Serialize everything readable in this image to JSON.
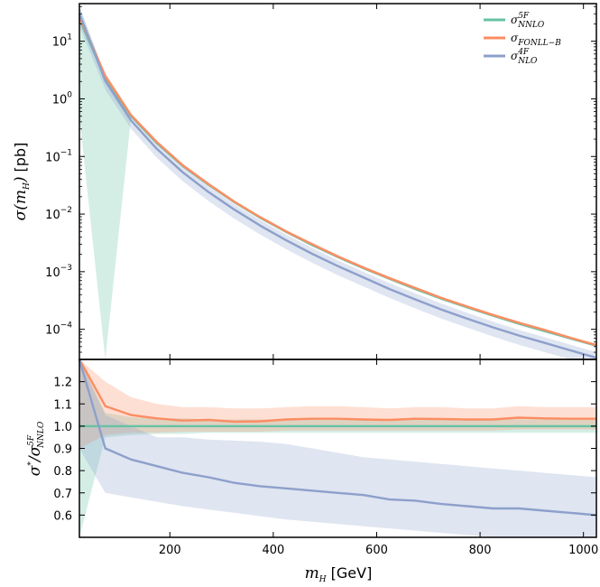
{
  "chart_data": [
    {
      "type": "line",
      "panel": "top",
      "yscale": "log",
      "xlim": [
        25,
        1025
      ],
      "ylim": [
        3e-05,
        45
      ],
      "ylabel": {
        "main": "σ(m",
        "sub": "H",
        "close": ")",
        "unit": "[pb]"
      },
      "yticks": [
        0.0001,
        0.001,
        0.01,
        0.1,
        1,
        10
      ],
      "ytick_labels": [
        {
          "base": "10",
          "exp": "−4"
        },
        {
          "base": "10",
          "exp": "−3"
        },
        {
          "base": "10",
          "exp": "−2"
        },
        {
          "base": "10",
          "exp": "−1"
        },
        {
          "base": "10",
          "exp": "0"
        },
        {
          "base": "10",
          "exp": "1"
        }
      ],
      "legend_position": "top-right",
      "x": [
        25,
        75,
        125,
        175,
        225,
        275,
        325,
        375,
        425,
        475,
        525,
        575,
        625,
        675,
        725,
        775,
        825,
        875,
        925,
        975,
        1025
      ],
      "series": [
        {
          "name": "5F NNLO",
          "legend": {
            "base": "σ",
            "sup": "5F",
            "sub": "NNLO"
          },
          "color": "#66c2a5",
          "values": [
            24,
            2.3,
            0.5,
            0.17,
            0.068,
            0.032,
            0.016,
            0.0086,
            0.0049,
            0.0029,
            0.00179,
            0.00114,
            0.00075,
            0.0005,
            0.00034,
            0.00024,
            0.000172,
            0.000125,
            9.3e-05,
            6.9e-05,
            5.2e-05
          ],
          "band_low": [
            0.5,
            1e-06,
            0.48,
            0.164,
            0.066,
            0.031,
            0.0155,
            0.0083,
            0.00475,
            0.0028,
            0.00174,
            0.0011,
            0.00073,
            0.00049,
            0.00033,
            0.000233,
            0.000167,
            0.000121,
            9e-05,
            6.7e-05,
            5e-05
          ],
          "band_high": [
            40,
            2.5,
            0.52,
            0.176,
            0.07,
            0.033,
            0.0165,
            0.0089,
            0.005,
            0.003,
            0.00184,
            0.00117,
            0.00077,
            0.00052,
            0.00035,
            0.000247,
            0.000177,
            0.000129,
            9.6e-05,
            7.1e-05,
            5.4e-05
          ]
        },
        {
          "name": "FONLL-B",
          "legend": {
            "base": "σ",
            "sub": "FONLL−B"
          },
          "color": "#fc8d62",
          "values": [
            26,
            2.5,
            0.52,
            0.177,
            0.07,
            0.033,
            0.0163,
            0.0088,
            0.005,
            0.003,
            0.00184,
            0.00117,
            0.00077,
            0.00052,
            0.00035,
            0.000248,
            0.000177,
            0.00013,
            9.7e-05,
            7.1e-05,
            5.3e-05
          ],
          "band_low": [
            22,
            2.2,
            0.48,
            0.165,
            0.066,
            0.031,
            0.0154,
            0.0083,
            0.0047,
            0.0028,
            0.00173,
            0.0011,
            0.00072,
            0.00049,
            0.00033,
            0.000233,
            0.000166,
            0.000122,
            9.1e-05,
            6.7e-05,
            5e-05
          ],
          "band_high": [
            32,
            2.8,
            0.56,
            0.19,
            0.075,
            0.035,
            0.0173,
            0.0093,
            0.0053,
            0.0032,
            0.00195,
            0.00124,
            0.00082,
            0.00055,
            0.00037,
            0.000263,
            0.000188,
            0.000138,
            0.000103,
            7.5e-05,
            5.6e-05
          ]
        },
        {
          "name": "4F NLO",
          "legend": {
            "base": "σ",
            "sup": "4F",
            "sub": "NLO"
          },
          "color": "#8da0cb",
          "values": [
            30,
            2.05,
            0.42,
            0.135,
            0.053,
            0.024,
            0.0119,
            0.0063,
            0.0035,
            0.00205,
            0.00125,
            0.00079,
            0.0005,
            0.00033,
            0.00022,
            0.000153,
            0.000108,
            7.8e-05,
            5.8e-05,
            4.3e-05,
            3.2e-05
          ],
          "band_low": [
            18,
            1.45,
            0.3,
            0.095,
            0.037,
            0.0168,
            0.0083,
            0.0044,
            0.00245,
            0.00143,
            0.00087,
            0.00055,
            0.00035,
            0.00023,
            0.000154,
            0.000107,
            7.5e-05,
            5.4e-05,
            4e-05,
            3e-05,
            2.2e-05
          ],
          "band_high": [
            40,
            2.6,
            0.53,
            0.17,
            0.066,
            0.03,
            0.0148,
            0.0079,
            0.0044,
            0.0026,
            0.00157,
            0.00099,
            0.00063,
            0.00042,
            0.00028,
            0.000193,
            0.000136,
            9.8e-05,
            7.3e-05,
            5.4e-05,
            4e-05
          ]
        }
      ]
    },
    {
      "type": "line",
      "panel": "bottom",
      "xlim": [
        25,
        1025
      ],
      "ylim": [
        0.5,
        1.3
      ],
      "xlabel": {
        "main": "m",
        "sub": "H",
        "unit": "[GeV]"
      },
      "ylabel": {
        "base": "σ",
        "sup1": "*",
        "slash": "/σ",
        "sup2": "5F",
        "sub2": "NNLO"
      },
      "xticks": [
        200,
        400,
        600,
        800,
        1000
      ],
      "xtick_labels": [
        "200",
        "400",
        "600",
        "800",
        "1000"
      ],
      "yticks": [
        0.6,
        0.7,
        0.8,
        0.9,
        1.0,
        1.1,
        1.2
      ],
      "ytick_labels": [
        "0.6",
        "0.7",
        "0.8",
        "0.9",
        "1.0",
        "1.1",
        "1.2"
      ],
      "x": [
        25,
        75,
        125,
        175,
        225,
        275,
        325,
        375,
        425,
        475,
        525,
        575,
        625,
        675,
        725,
        775,
        825,
        875,
        925,
        975,
        1025
      ],
      "series": [
        {
          "name": "5F NNLO",
          "color": "#66c2a5",
          "values": [
            1.0,
            1.0,
            1.0,
            1.0,
            1.0,
            1.0,
            1.0,
            1.0,
            1.0,
            1.0,
            1.0,
            1.0,
            1.0,
            1.0,
            1.0,
            1.0,
            1.0,
            1.0,
            1.0,
            1.0,
            1.0
          ],
          "band_low": [
            0.5,
            0.95,
            0.96,
            0.965,
            0.965,
            0.97,
            0.97,
            0.97,
            0.97,
            0.97,
            0.97,
            0.97,
            0.97,
            0.97,
            0.97,
            0.97,
            0.97,
            0.97,
            0.97,
            0.97,
            0.97
          ],
          "band_high": [
            1.3,
            1.06,
            1.04,
            1.035,
            1.035,
            1.03,
            1.03,
            1.03,
            1.03,
            1.03,
            1.03,
            1.03,
            1.03,
            1.03,
            1.03,
            1.03,
            1.03,
            1.03,
            1.03,
            1.03,
            1.03
          ]
        },
        {
          "name": "FONLL-B",
          "color": "#fc8d62",
          "values": [
            1.3,
            1.09,
            1.05,
            1.035,
            1.025,
            1.028,
            1.02,
            1.022,
            1.03,
            1.033,
            1.033,
            1.03,
            1.028,
            1.033,
            1.032,
            1.03,
            1.03,
            1.038,
            1.035,
            1.033,
            1.033
          ],
          "band_low": [
            0.9,
            0.96,
            0.97,
            0.97,
            0.975,
            0.975,
            0.975,
            0.975,
            0.98,
            0.98,
            0.98,
            0.98,
            0.98,
            0.98,
            0.98,
            0.98,
            0.98,
            0.985,
            0.985,
            0.985,
            0.985
          ],
          "band_high": [
            1.3,
            1.2,
            1.13,
            1.1,
            1.085,
            1.085,
            1.08,
            1.08,
            1.085,
            1.09,
            1.09,
            1.085,
            1.08,
            1.085,
            1.085,
            1.08,
            1.08,
            1.09,
            1.085,
            1.085,
            1.085
          ]
        },
        {
          "name": "4F NLO",
          "color": "#8da0cb",
          "values": [
            1.3,
            0.9,
            0.85,
            0.82,
            0.79,
            0.77,
            0.745,
            0.73,
            0.72,
            0.71,
            0.7,
            0.69,
            0.67,
            0.665,
            0.65,
            0.64,
            0.63,
            0.63,
            0.62,
            0.61,
            0.6
          ],
          "band_low": [
            0.9,
            0.7,
            0.68,
            0.66,
            0.64,
            0.625,
            0.61,
            0.595,
            0.58,
            0.57,
            0.56,
            0.55,
            0.54,
            0.53,
            0.52,
            0.51,
            0.5,
            0.5,
            0.5,
            0.5,
            0.5
          ],
          "band_high": [
            1.3,
            1.05,
            1.0,
            0.95,
            0.95,
            0.94,
            0.935,
            0.93,
            0.92,
            0.9,
            0.88,
            0.86,
            0.85,
            0.84,
            0.83,
            0.82,
            0.81,
            0.8,
            0.79,
            0.78,
            0.77
          ]
        }
      ]
    }
  ]
}
